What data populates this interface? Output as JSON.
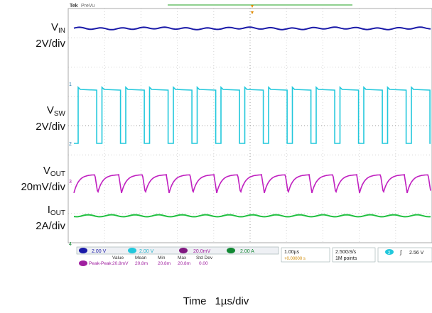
{
  "chart_data": {
    "type": "line",
    "header": {
      "brand": "Tek",
      "mode": "PreVu"
    },
    "time_label": "Time",
    "time_scale": "1µs/div",
    "grid": true,
    "channels": [
      {
        "label_main": "V",
        "label_sub": "IN",
        "scale": "2V/div",
        "color": "#1a1aa8",
        "shape": "dc"
      },
      {
        "label_main": "V",
        "label_sub": "SW",
        "scale": "2V/div",
        "color": "#22c8dc",
        "shape": "square"
      },
      {
        "label_main": "V",
        "label_sub": "OUT",
        "scale": "20mV/div",
        "color": "#c020c0",
        "shape": "ripple"
      },
      {
        "label_main": "I",
        "label_sub": "OUT",
        "scale": "2A/div",
        "color": "#20c040",
        "shape": "dc"
      }
    ],
    "readouts": {
      "ch1": "2.00 V",
      "ch2": "2.00 V",
      "ch3": "20.0mV",
      "ch4": "2.00 A",
      "columns": [
        "Value",
        "Mean",
        "Min",
        "Max",
        "Std Dev"
      ],
      "measurement": {
        "name": "Peak-Peak",
        "values": [
          "20.8mV",
          "20.8m",
          "20.8m",
          "20.8m",
          "0.00"
        ]
      },
      "horizontal": "1.00µs",
      "position": "+0.00000 s",
      "sample_rate": "2.50GS/s",
      "record_length": "1M points",
      "trigger_channel": "2",
      "trigger_level": "2.56 V"
    }
  }
}
